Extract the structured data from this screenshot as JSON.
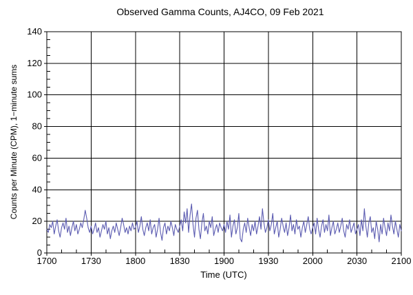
{
  "window": {
    "background_color": "#ffffff",
    "axis_color": "#000000"
  },
  "chart_data": {
    "type": "line",
    "title": "Observed Gamma Counts, AJ4CO, 09 Feb 2021",
    "xlabel": "Time (UTC)",
    "ylabel": "Counts per Minute (CPM), 1−minute sums",
    "line_color": "#5a5ab0",
    "grid": "major-both",
    "legend": "none",
    "xlim_minutes": [
      0,
      240
    ],
    "x_tick_labels": [
      "1700",
      "1730",
      "1800",
      "1830",
      "1900",
      "1930",
      "2000",
      "2030",
      "2100"
    ],
    "x_major_step_minutes": 30,
    "x_minor_step_minutes": 10,
    "ylim": [
      0,
      140
    ],
    "y_ticks": [
      0,
      20,
      40,
      60,
      80,
      100,
      120,
      140
    ],
    "y_minor_step": 5,
    "sample_interval_minutes": 1,
    "start_time_utc": "1700",
    "values": [
      15,
      13,
      18,
      16,
      20,
      12,
      17,
      21,
      14,
      10,
      16,
      19,
      15,
      22,
      13,
      17,
      11,
      16,
      20,
      14,
      18,
      12,
      15,
      19,
      16,
      21,
      27,
      22,
      16,
      13,
      17,
      12,
      15,
      19,
      13,
      16,
      10,
      14,
      18,
      15,
      20,
      12,
      16,
      9,
      14,
      17,
      13,
      19,
      15,
      11,
      16,
      22,
      18,
      13,
      16,
      12,
      17,
      14,
      19,
      15,
      16,
      20,
      13,
      17,
      23,
      15,
      11,
      16,
      19,
      14,
      21,
      12,
      16,
      18,
      10,
      15,
      22,
      13,
      8,
      16,
      19,
      12,
      17,
      14,
      20,
      16,
      11,
      18,
      15,
      13,
      17,
      21,
      14,
      26,
      19,
      28,
      13,
      24,
      31,
      18,
      10,
      22,
      27,
      15,
      9,
      19,
      25,
      14,
      17,
      12,
      20,
      16,
      23,
      11,
      15,
      18,
      13,
      19,
      16,
      14,
      18,
      13,
      20,
      15,
      24,
      10,
      17,
      21,
      12,
      16,
      25,
      9,
      7,
      15,
      19,
      13,
      22,
      16,
      11,
      18,
      14,
      20,
      12,
      17,
      23,
      15,
      28,
      19,
      13,
      16,
      21,
      14,
      18,
      25,
      12,
      16,
      20,
      10,
      15,
      22,
      17,
      13,
      19,
      11,
      16,
      24,
      14,
      18,
      12,
      21,
      15,
      17,
      10,
      16,
      20,
      13,
      18,
      23,
      15,
      12,
      16,
      19,
      12,
      22,
      15,
      10,
      17,
      21,
      13,
      18,
      14,
      24,
      11,
      16,
      20,
      12,
      15,
      19,
      13,
      17,
      22,
      14,
      10,
      18,
      15,
      21,
      13,
      16,
      19,
      12,
      15,
      18,
      11,
      21,
      14,
      28,
      17,
      10,
      19,
      23,
      13,
      16,
      9,
      20,
      15,
      7,
      18,
      12,
      22,
      16,
      11,
      19,
      14,
      24,
      17,
      12,
      20,
      15,
      10,
      18,
      14
    ]
  }
}
